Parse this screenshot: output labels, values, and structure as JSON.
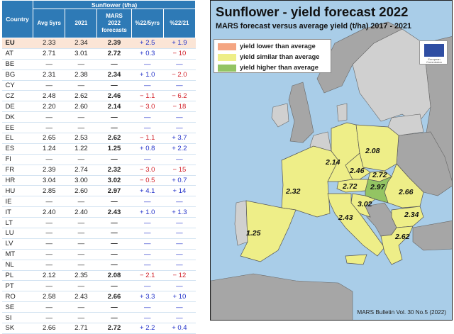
{
  "table": {
    "country_header": "Country",
    "group_header": "Sunflower (t/ha)",
    "col_headers": [
      "Avg 5yrs",
      "2021",
      "MARS\n2022\nforecasts",
      "%22/5yrs",
      "%22/21"
    ],
    "rows": [
      {
        "country": "EU",
        "avg5": "2.33",
        "y2021": "2.34",
        "mars": "2.39",
        "p5": "+ 2.5",
        "p21": "+ 1.9"
      },
      {
        "country": "AT",
        "avg5": "2.71",
        "y2021": "3.01",
        "mars": "2.72",
        "p5": "+ 0.3",
        "p21": "− 10"
      },
      {
        "country": "BE",
        "avg5": "—",
        "y2021": "—",
        "mars": "—",
        "p5": "—",
        "p21": "—"
      },
      {
        "country": "BG",
        "avg5": "2.31",
        "y2021": "2.38",
        "mars": "2.34",
        "p5": "+ 1.0",
        "p21": "− 2.0"
      },
      {
        "country": "CY",
        "avg5": "—",
        "y2021": "—",
        "mars": "—",
        "p5": "—",
        "p21": "—"
      },
      {
        "country": "CZ",
        "avg5": "2.48",
        "y2021": "2.62",
        "mars": "2.46",
        "p5": "− 1.1",
        "p21": "− 6.2"
      },
      {
        "country": "DE",
        "avg5": "2.20",
        "y2021": "2.60",
        "mars": "2.14",
        "p5": "− 3.0",
        "p21": "− 18"
      },
      {
        "country": "DK",
        "avg5": "—",
        "y2021": "—",
        "mars": "—",
        "p5": "—",
        "p21": "—"
      },
      {
        "country": "EE",
        "avg5": "—",
        "y2021": "—",
        "mars": "—",
        "p5": "—",
        "p21": "—"
      },
      {
        "country": "EL",
        "avg5": "2.65",
        "y2021": "2.53",
        "mars": "2.62",
        "p5": "− 1.1",
        "p21": "+ 3.7"
      },
      {
        "country": "ES",
        "avg5": "1.24",
        "y2021": "1.22",
        "mars": "1.25",
        "p5": "+ 0.8",
        "p21": "+ 2.2"
      },
      {
        "country": "FI",
        "avg5": "—",
        "y2021": "—",
        "mars": "—",
        "p5": "—",
        "p21": "—"
      },
      {
        "country": "FR",
        "avg5": "2.39",
        "y2021": "2.74",
        "mars": "2.32",
        "p5": "− 3.0",
        "p21": "− 15"
      },
      {
        "country": "HR",
        "avg5": "3.04",
        "y2021": "3.00",
        "mars": "3.02",
        "p5": "− 0.5",
        "p21": "+ 0.7"
      },
      {
        "country": "HU",
        "avg5": "2.85",
        "y2021": "2.60",
        "mars": "2.97",
        "p5": "+ 4.1",
        "p21": "+ 14"
      },
      {
        "country": "IE",
        "avg5": "—",
        "y2021": "—",
        "mars": "—",
        "p5": "—",
        "p21": "—"
      },
      {
        "country": "IT",
        "avg5": "2.40",
        "y2021": "2.40",
        "mars": "2.43",
        "p5": "+ 1.0",
        "p21": "+ 1.3"
      },
      {
        "country": "LT",
        "avg5": "—",
        "y2021": "—",
        "mars": "—",
        "p5": "—",
        "p21": "—"
      },
      {
        "country": "LU",
        "avg5": "—",
        "y2021": "—",
        "mars": "—",
        "p5": "—",
        "p21": "—"
      },
      {
        "country": "LV",
        "avg5": "—",
        "y2021": "—",
        "mars": "—",
        "p5": "—",
        "p21": "—"
      },
      {
        "country": "MT",
        "avg5": "—",
        "y2021": "—",
        "mars": "—",
        "p5": "—",
        "p21": "—"
      },
      {
        "country": "NL",
        "avg5": "—",
        "y2021": "—",
        "mars": "—",
        "p5": "—",
        "p21": "—"
      },
      {
        "country": "PL",
        "avg5": "2.12",
        "y2021": "2.35",
        "mars": "2.08",
        "p5": "− 2.1",
        "p21": "− 12"
      },
      {
        "country": "PT",
        "avg5": "—",
        "y2021": "—",
        "mars": "—",
        "p5": "—",
        "p21": "—"
      },
      {
        "country": "RO",
        "avg5": "2.58",
        "y2021": "2.43",
        "mars": "2.66",
        "p5": "+ 3.3",
        "p21": "+ 10"
      },
      {
        "country": "SE",
        "avg5": "—",
        "y2021": "—",
        "mars": "—",
        "p5": "—",
        "p21": "—"
      },
      {
        "country": "SI",
        "avg5": "—",
        "y2021": "—",
        "mars": "—",
        "p5": "—",
        "p21": "—"
      },
      {
        "country": "SK",
        "avg5": "2.66",
        "y2021": "2.71",
        "mars": "2.72",
        "p5": "+ 2.2",
        "p21": "+ 0.4"
      }
    ]
  },
  "map": {
    "title": "Sunflower - yield forecast 2022",
    "subtitle": "MARS forecast versus average yield (t/ha) 2017 - 2021",
    "legend": [
      {
        "label": "yield lower than average",
        "color": "#f4a582"
      },
      {
        "label": "yield similar than average",
        "color": "#eeee88"
      },
      {
        "label": "yield higher than average",
        "color": "#93c463"
      }
    ],
    "logo_text": "European Commission",
    "source": "MARS Bulletin Vol. 30 No.5 (2022)",
    "colors": {
      "sea": "#a9cde8",
      "no_data": "#d0d0d0",
      "non_eu": "#a6a6a6",
      "similar": "#eeee88",
      "higher": "#93c463",
      "border": "#555555"
    },
    "country_values": {
      "ES": "1.25",
      "FR": "2.32",
      "DE": "2.14",
      "PL": "2.08",
      "CZ": "2.46",
      "SK": "2.72",
      "AT": "2.72",
      "HU": "2.97",
      "HR": "3.02",
      "IT": "2.43",
      "RO": "2.66",
      "BG": "2.34",
      "EL": "2.62"
    }
  }
}
